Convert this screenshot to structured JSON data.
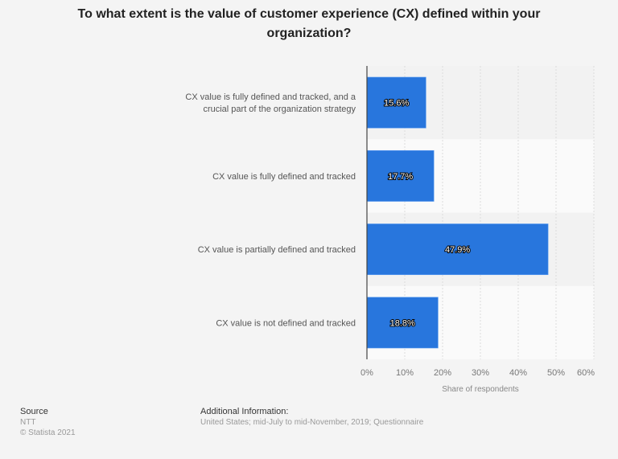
{
  "chart_data": {
    "type": "bar",
    "orientation": "horizontal",
    "title": "To what extent is the value of customer experience (CX) defined within your organization?",
    "categories": [
      [
        "CX value is fully defined and tracked, and a",
        "crucial part of the organization strategy"
      ],
      [
        "CX value is fully defined and tracked"
      ],
      [
        "CX value is partially defined and tracked"
      ],
      [
        "CX value is not defined and tracked"
      ]
    ],
    "values": [
      15.6,
      17.7,
      47.9,
      18.8
    ],
    "data_labels": [
      "15.6%",
      "17.7%",
      "47.9%",
      "18.8%"
    ],
    "xlabel": "Share of respondents",
    "xlim": [
      0,
      60
    ],
    "xticks": [
      0,
      10,
      20,
      30,
      40,
      50,
      60
    ],
    "xtick_labels": [
      "0%",
      "10%",
      "20%",
      "30%",
      "40%",
      "50%",
      "60%"
    ],
    "grid": true,
    "bar_color": "#2876dd"
  },
  "footer": {
    "source_heading": "Source",
    "source": "NTT",
    "copyright": "© Statista 2021",
    "info_heading": "Additional Information:",
    "info": "United States; mid-July to mid-November, 2019; Questionnaire"
  }
}
